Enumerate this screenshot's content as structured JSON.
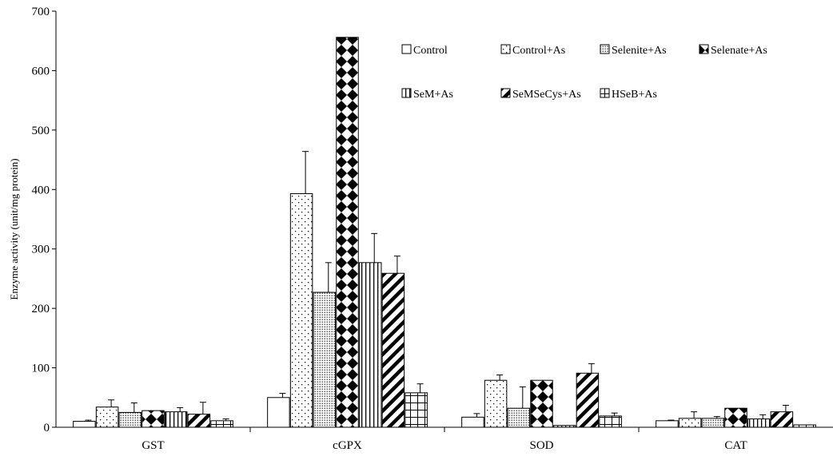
{
  "chart_data": {
    "type": "bar",
    "title": "",
    "xlabel": "",
    "ylabel": "Enzyme activity (unit/mg protein)",
    "ylim": [
      0,
      700
    ],
    "yticks": [
      0,
      100,
      200,
      300,
      400,
      500,
      600,
      700
    ],
    "categories": [
      "GST",
      "cGPX",
      "SOD",
      "CAT"
    ],
    "grid": false,
    "legend_position": "top-right",
    "series": [
      {
        "name": "Control",
        "pattern": "open",
        "values": [
          10,
          50,
          17,
          11
        ],
        "errors": [
          2,
          7,
          6,
          1
        ]
      },
      {
        "name": "Control+As",
        "pattern": "sparse-dots",
        "values": [
          34,
          393,
          79,
          15
        ],
        "errors": [
          12,
          71,
          9,
          11
        ]
      },
      {
        "name": "Selenite+As",
        "pattern": "dense-dots",
        "values": [
          25,
          227,
          32,
          15
        ],
        "errors": [
          16,
          50,
          36,
          3
        ]
      },
      {
        "name": "Selenate+As",
        "pattern": "diamond-check",
        "values": [
          28,
          656,
          79,
          32
        ],
        "errors": [
          0,
          0,
          0,
          0
        ]
      },
      {
        "name": "SeM+As",
        "pattern": "vertical-lines",
        "values": [
          26,
          277,
          3,
          14
        ],
        "errors": [
          7,
          49,
          0,
          7
        ]
      },
      {
        "name": "SeMSeCys+As",
        "pattern": "wide-diagonal",
        "values": [
          22,
          259,
          91,
          26
        ],
        "errors": [
          20,
          29,
          16,
          11
        ]
      },
      {
        "name": "HSeB+As",
        "pattern": "grid",
        "values": [
          11,
          58,
          19,
          4
        ],
        "errors": [
          3,
          15,
          5,
          0
        ]
      }
    ]
  }
}
